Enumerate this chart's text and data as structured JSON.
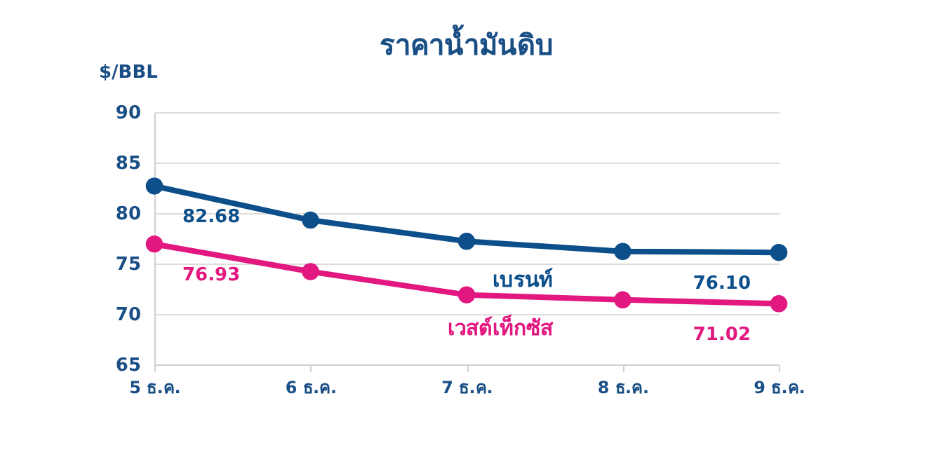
{
  "chart_data": {
    "type": "line",
    "title": "ราคาน้ำมันดิบ",
    "ylabel": "$/BBL",
    "categories": [
      "5 ธ.ค.",
      "6 ธ.ค.",
      "7 ธ.ค.",
      "8 ธ.ค.",
      "9 ธ.ค."
    ],
    "series": [
      {
        "name": "เบรนท์",
        "color": "#0d4f8b",
        "values": [
          82.68,
          79.3,
          77.2,
          76.2,
          76.1
        ],
        "value_labels": [
          "82.68",
          null,
          null,
          null,
          "76.10"
        ]
      },
      {
        "name": "เวสต์เท็กซัส",
        "color": "#e2177f",
        "values": [
          76.93,
          74.2,
          71.9,
          71.4,
          71.02
        ],
        "value_labels": [
          "76.93",
          null,
          null,
          null,
          "71.02"
        ]
      }
    ],
    "ylim": [
      65,
      90
    ],
    "yticks": [
      65,
      70,
      75,
      80,
      85,
      90
    ],
    "grid": "y",
    "marker": "circle",
    "line_style": "solid"
  }
}
